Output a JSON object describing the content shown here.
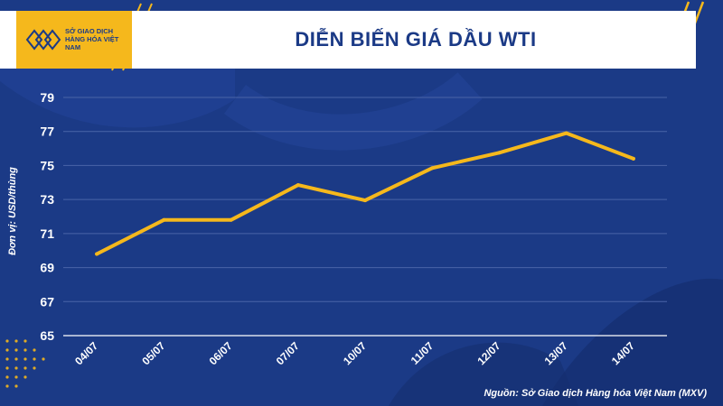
{
  "header": {
    "title": "DIỄN BIẾN GIÁ DẦU WTI",
    "logo_text": "SỞ GIAO DỊCH HÀNG HÓA VIỆT NAM"
  },
  "source_note": "Nguồn: Sở Giao dịch Hàng hóa Việt Nam (MXV)",
  "colors": {
    "background": "#1b3a86",
    "accent": "#f5b81c",
    "line": "#f5b81c",
    "grid": "#4a64a8",
    "text": "#ffffff"
  },
  "chart_data": {
    "type": "line",
    "title": "DIỄN BIẾN GIÁ DẦU WTI",
    "xlabel": "",
    "ylabel": "Đơn vị: USD/thùng",
    "categories": [
      "04/07",
      "05/07",
      "06/07",
      "07/07",
      "10/07",
      "11/07",
      "12/07",
      "13/07",
      "14/07"
    ],
    "series": [
      {
        "values": [
          69.8,
          71.8,
          71.8,
          73.85,
          72.95,
          74.85,
          75.75,
          76.9,
          75.4
        ]
      }
    ],
    "ylim": [
      65,
      79
    ],
    "yticks": [
      65,
      67,
      69,
      71,
      73,
      75,
      77,
      79
    ],
    "grid": true,
    "legend": "none"
  }
}
